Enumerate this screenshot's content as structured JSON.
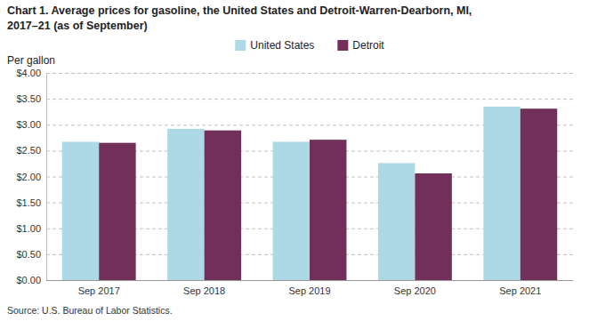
{
  "chart_data": {
    "type": "bar",
    "title": "Chart 1. Average prices for gasoline, the United States and Detroit-Warren-Dearborn, MI,\n2017–21 (as of September)",
    "ylabel": "Per gallon",
    "annotations": [
      "Source: U.S. Bureau of Labor Statistics."
    ],
    "categories": [
      "Sep 2017",
      "Sep 2018",
      "Sep 2019",
      "Sep 2020",
      "Sep 2021"
    ],
    "series": [
      {
        "name": "United States",
        "color": "#ADD8E6",
        "values": [
          2.67,
          2.92,
          2.67,
          2.26,
          3.35
        ]
      },
      {
        "name": "Detroit",
        "color": "#722F5A",
        "values": [
          2.65,
          2.89,
          2.71,
          2.06,
          3.31
        ]
      }
    ],
    "ylim": [
      0,
      4.0
    ],
    "yticks": [
      {
        "value": 0.0,
        "label": "$0.00"
      },
      {
        "value": 0.5,
        "label": "$0.50"
      },
      {
        "value": 1.0,
        "label": "$1.00"
      },
      {
        "value": 1.5,
        "label": "$1.50"
      },
      {
        "value": 2.0,
        "label": "$2.00"
      },
      {
        "value": 2.5,
        "label": "$2.50"
      },
      {
        "value": 3.0,
        "label": "$3.00"
      },
      {
        "value": 3.5,
        "label": "$3.50"
      },
      {
        "value": 4.0,
        "label": "$4.00"
      }
    ],
    "grid": true,
    "legend": "top"
  }
}
